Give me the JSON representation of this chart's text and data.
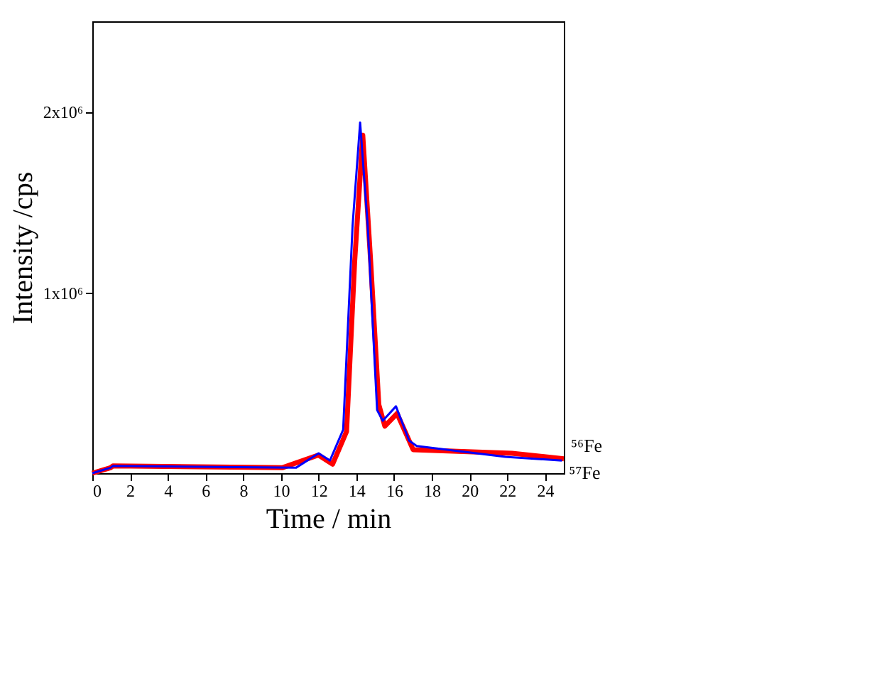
{
  "chart_data": {
    "type": "line",
    "xlabel": "Time / min",
    "ylabel": "Intensity /cps",
    "xlim": [
      0,
      25
    ],
    "xticks": [
      0,
      2,
      4,
      6,
      8,
      10,
      12,
      14,
      16,
      18,
      20,
      22,
      24
    ],
    "ylim": [
      0,
      2500000
    ],
    "yticks": [
      {
        "value": 1000000,
        "label": "1x10⁶"
      },
      {
        "value": 2000000,
        "label": "2x10⁶"
      }
    ],
    "grid": false,
    "legend": false,
    "marker": "none",
    "line_style": "solid",
    "series": [
      {
        "name": "⁵⁶Fe",
        "color": "#ff0000",
        "x": [
          0,
          0.96,
          1.09,
          10.07,
          11.99,
          12.74,
          13.48,
          13.91,
          14.34,
          14.76,
          15.19,
          15.51,
          16.16,
          17.01,
          22.25,
          25.0
        ],
        "values": [
          0,
          30000,
          40000,
          30000,
          100000,
          50000,
          230000,
          1170000,
          1870000,
          1170000,
          380000,
          260000,
          330000,
          130000,
          110000,
          80000
        ]
      },
      {
        "name": "⁵⁷Fe",
        "color": "#0000ff",
        "x": [
          0,
          0.96,
          1.1,
          10.8,
          12.0,
          12.6,
          13.3,
          13.8,
          14.2,
          14.6,
          15.1,
          15.4,
          16.1,
          16.8,
          17.2,
          21.9,
          24.9
        ],
        "values": [
          0,
          30000,
          40000,
          30000,
          110000,
          70000,
          240000,
          1370000,
          1940000,
          1370000,
          350000,
          290000,
          370000,
          180000,
          150000,
          90000,
          70000
        ]
      }
    ]
  }
}
